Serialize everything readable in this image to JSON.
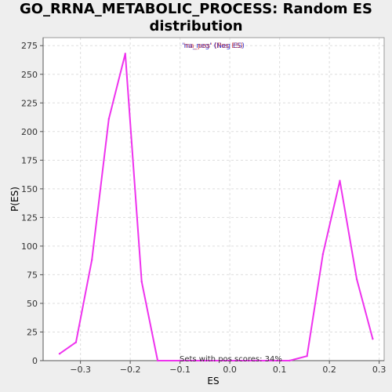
{
  "chart_data": {
    "type": "line",
    "title": "GO_RRNA_METABOLIC_PROCESS: Random ES distribution",
    "xlabel": "ES",
    "ylabel": "P(ES)",
    "xlim": [
      -0.375,
      0.31
    ],
    "ylim": [
      0,
      282
    ],
    "x_ticks": [
      -0.3,
      -0.2,
      -0.1,
      0.0,
      0.1,
      0.2,
      0.3
    ],
    "x_tick_labels": [
      "−0.3",
      "−0.2",
      "−0.1",
      "0.0",
      "0.1",
      "0.2",
      "0.3"
    ],
    "y_ticks": [
      0,
      25,
      50,
      75,
      100,
      125,
      150,
      175,
      200,
      225,
      250,
      275
    ],
    "y_tick_labels": [
      "0",
      "25",
      "50",
      "75",
      "100",
      "125",
      "150",
      "175",
      "200",
      "225",
      "250",
      "275"
    ],
    "grid": true,
    "legend": {
      "placement": "top-center",
      "entries": [
        {
          "label": "'na_neg' (Neg ES)",
          "color": "#3333cc"
        },
        {
          "label": "'na_pos' (Pos ES)",
          "color": "#cc3333"
        }
      ]
    },
    "annotation": "Sets with pos scores: 34%",
    "series": [
      {
        "color": "#ee33ee",
        "x": [
          -0.342,
          -0.309,
          -0.277,
          -0.243,
          -0.21,
          -0.177,
          -0.145,
          -0.1,
          -0.05,
          0.0,
          0.05,
          0.1,
          0.12,
          0.155,
          0.187,
          0.221,
          0.255,
          0.287
        ],
        "y": [
          6,
          16,
          88,
          211,
          268,
          69,
          0,
          0,
          0,
          0,
          0,
          0,
          0,
          4,
          93,
          157,
          71,
          19
        ]
      }
    ]
  }
}
